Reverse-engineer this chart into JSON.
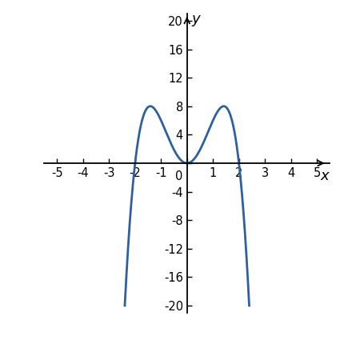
{
  "xlim": [
    -5.5,
    5.5
  ],
  "ylim": [
    -21,
    21
  ],
  "xticks": [
    -5,
    -4,
    -3,
    -2,
    -1,
    0,
    1,
    2,
    3,
    4,
    5
  ],
  "yticks": [
    -20,
    -16,
    -12,
    -8,
    -4,
    0,
    4,
    8,
    12,
    16,
    20
  ],
  "xlabel": "x",
  "ylabel": "y",
  "curve_color": "#2e5fa3",
  "curve_linewidth": 2.0,
  "x_range": [
    -2.396,
    2.396
  ],
  "background_color": "#ffffff",
  "tick_fontsize": 10.5,
  "label_fontsize": 13
}
